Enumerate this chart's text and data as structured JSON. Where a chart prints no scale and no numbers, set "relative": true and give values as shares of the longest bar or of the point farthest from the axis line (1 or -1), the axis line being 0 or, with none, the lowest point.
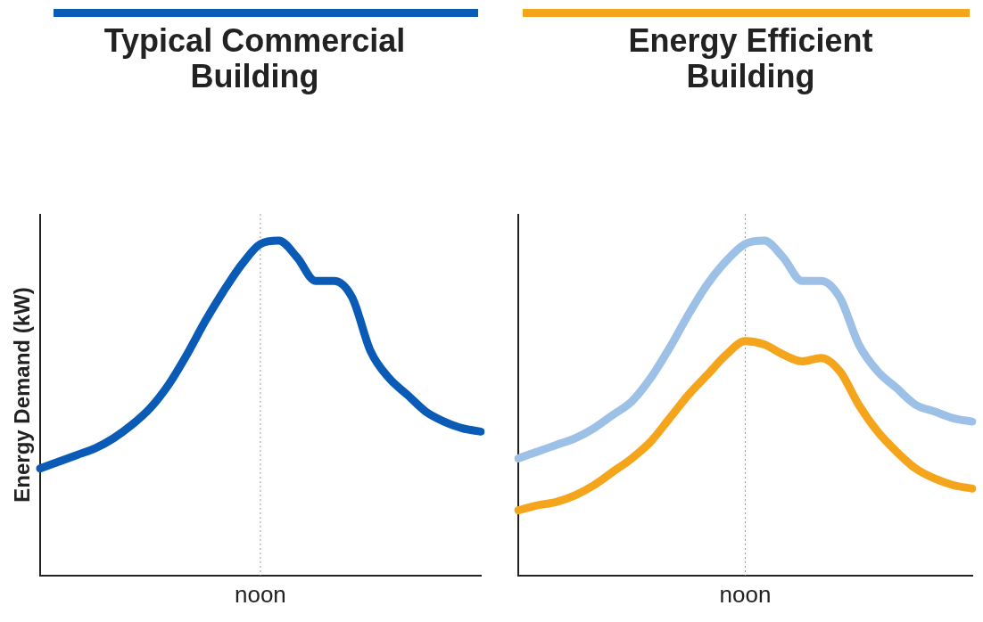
{
  "chart_data": [
    {
      "type": "line",
      "title": "Typical Commercial Building",
      "ylabel": "Energy Demand (kW)",
      "relative": true,
      "categories": [
        null,
        null,
        null,
        null,
        null,
        null,
        null,
        null,
        null,
        null,
        null,
        null,
        null,
        null,
        null,
        null,
        null,
        null,
        null,
        null,
        null,
        null,
        null,
        null,
        null
      ],
      "annotations": [
        "noon"
      ],
      "series": [
        {
          "color": "#0a5bb5",
          "values": [
            0.32,
            0.34,
            0.36,
            0.38,
            0.41,
            0.45,
            0.5,
            0.57,
            0.66,
            0.76,
            0.85,
            0.93,
            0.99,
            1,
            0.95,
            0.88,
            0.88,
            0.83,
            0.67,
            0.59,
            0.54,
            0.49,
            0.46,
            0.44,
            0.43
          ]
        }
      ]
    },
    {
      "type": "line",
      "title": "Energy Efficient Building",
      "relative": true,
      "categories": [
        null,
        null,
        null,
        null,
        null,
        null,
        null,
        null,
        null,
        null,
        null,
        null,
        null,
        null,
        null,
        null,
        null,
        null,
        null,
        null,
        null,
        null,
        null,
        null,
        null
      ],
      "annotations": [
        "noon"
      ],
      "series": [
        {
          "color": "#9dc0e6",
          "values": [
            0.35,
            0.37,
            0.39,
            0.41,
            0.44,
            0.48,
            0.52,
            0.59,
            0.68,
            0.78,
            0.87,
            0.94,
            0.99,
            1,
            0.95,
            0.88,
            0.88,
            0.83,
            0.69,
            0.61,
            0.56,
            0.51,
            0.49,
            0.47,
            0.46
          ]
        },
        {
          "color": "#f4a51c",
          "values": [
            0.195,
            0.21,
            0.22,
            0.24,
            0.27,
            0.31,
            0.35,
            0.4,
            0.47,
            0.54,
            0.6,
            0.66,
            0.7,
            0.69,
            0.66,
            0.64,
            0.65,
            0.61,
            0.51,
            0.43,
            0.37,
            0.32,
            0.29,
            0.27,
            0.26
          ]
        }
      ]
    }
  ]
}
